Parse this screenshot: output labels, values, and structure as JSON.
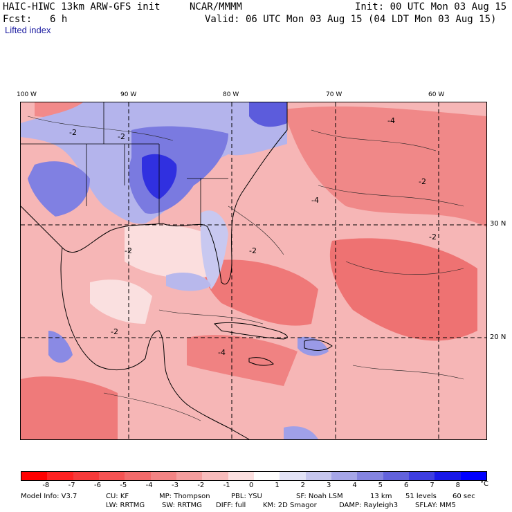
{
  "header": {
    "model": "HAIC-HIWC 13km ARW-GFS init",
    "org": "NCAR/MMMM",
    "init": "Init: 00 UTC Mon 03 Aug 15",
    "fcst_label": "Fcst:",
    "fcst_value": "6 h",
    "valid": "Valid: 06 UTC Mon 03 Aug 15 (04 LDT Mon 03 Aug 15)",
    "field": "Lifted index"
  },
  "map": {
    "lon_labels": [
      "100 W",
      "90 W",
      "80 W",
      "70 W",
      "60 W"
    ],
    "lat_labels": [
      "30 N",
      "20 N"
    ],
    "contour_label": "-2",
    "contour_label_4": "-4"
  },
  "legend": {
    "ticks": [
      "-8",
      "-7",
      "-6",
      "-5",
      "-4",
      "-3",
      "-2",
      "-1",
      "0",
      "1",
      "2",
      "3",
      "4",
      "5",
      "6",
      "7",
      "8"
    ],
    "unit": "°C",
    "colors": [
      "#ff0000",
      "#ff2222",
      "#f63a3a",
      "#f55353",
      "#f26b6b",
      "#f28484",
      "#f49e9e",
      "#f8bcbc",
      "#fce0e0",
      "#ffffff",
      "#e2e2f6",
      "#c6c6ee",
      "#a6a6e8",
      "#8484e0",
      "#6262dc",
      "#3e3ee0",
      "#1818e8",
      "#0000ff"
    ]
  },
  "model_info": {
    "line1": [
      "Model Info: V3.7",
      "CU: KF",
      "MP: Thompson",
      "PBL: YSU",
      "SF: Noah LSM",
      "13 km",
      "51 levels",
      "60 sec"
    ],
    "line2": [
      "LW: RRTMG",
      "SW: RRTMG",
      "DIFF: full",
      "KM: 2D Smagor",
      "DAMP: Rayleigh3",
      "SFLAY: MM5"
    ]
  }
}
